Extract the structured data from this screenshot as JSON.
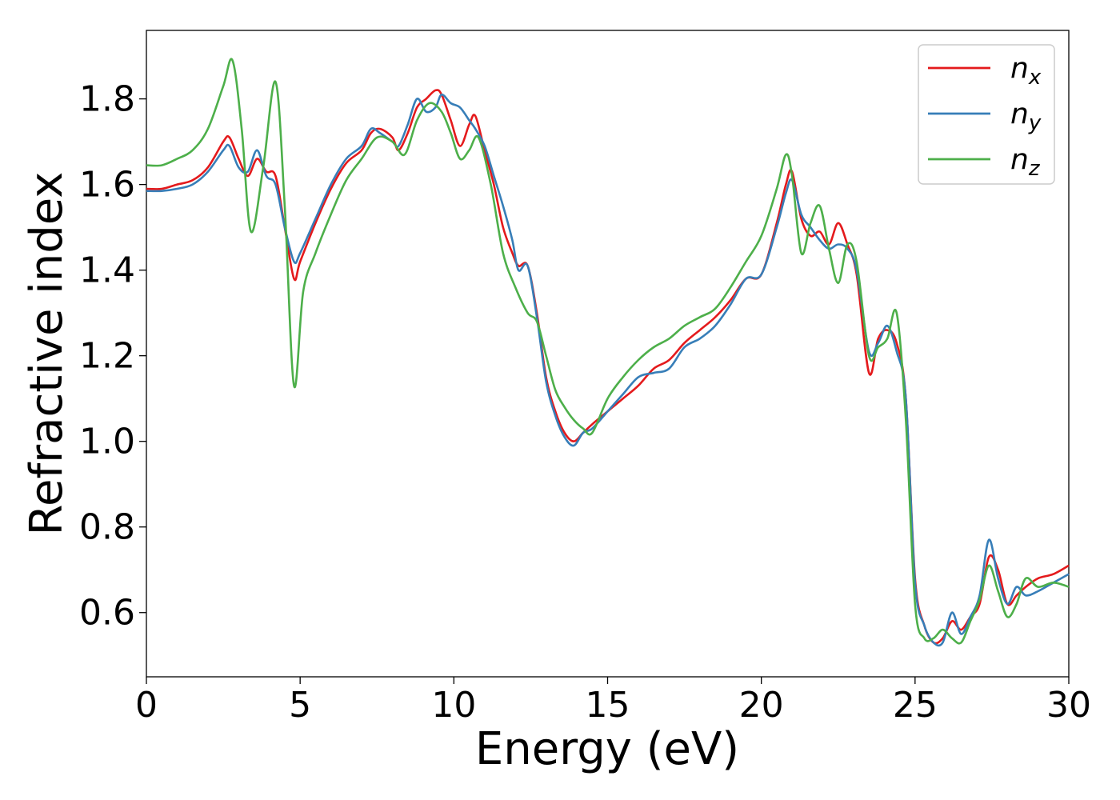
{
  "chart_data": {
    "type": "line",
    "title": "",
    "xlabel": "Energy (eV)",
    "ylabel": "Refractive index",
    "xlim": [
      0,
      30
    ],
    "ylim": [
      0.45,
      1.96
    ],
    "xticks": [
      0,
      5,
      10,
      15,
      20,
      25,
      30
    ],
    "yticks": [
      0.6,
      0.8,
      1.0,
      1.2,
      1.4,
      1.6,
      1.8
    ],
    "grid": false,
    "legend_position": "top-right",
    "series": [
      {
        "name": "n",
        "subscript": "x",
        "color": "#e41a1c",
        "x": [
          0,
          0.5,
          1,
          1.5,
          2,
          2.5,
          2.7,
          3,
          3.3,
          3.6,
          3.9,
          4.2,
          4.5,
          4.8,
          5,
          5.5,
          6,
          6.5,
          7,
          7.3,
          7.6,
          8,
          8.2,
          8.5,
          8.8,
          9.1,
          9.4,
          9.6,
          9.9,
          10.2,
          10.5,
          10.7,
          11,
          11.3,
          11.6,
          11.9,
          12.1,
          12.4,
          12.7,
          13,
          13.3,
          13.6,
          13.9,
          14.2,
          14.5,
          15,
          15.5,
          16,
          16.5,
          17,
          17.5,
          18,
          18.5,
          19,
          19.5,
          20,
          20.5,
          20.8,
          21,
          21.3,
          21.6,
          21.9,
          22.2,
          22.5,
          22.8,
          23.1,
          23.5,
          23.8,
          24.1,
          24.4,
          24.7,
          25,
          25.3,
          25.6,
          25.9,
          26.2,
          26.5,
          26.8,
          27.1,
          27.4,
          27.7,
          28,
          28.3,
          28.6,
          29,
          29.5,
          30
        ],
        "y": [
          1.59,
          1.59,
          1.6,
          1.61,
          1.64,
          1.7,
          1.71,
          1.66,
          1.62,
          1.66,
          1.63,
          1.62,
          1.5,
          1.38,
          1.42,
          1.51,
          1.59,
          1.65,
          1.68,
          1.72,
          1.73,
          1.71,
          1.68,
          1.72,
          1.78,
          1.8,
          1.82,
          1.81,
          1.75,
          1.69,
          1.74,
          1.76,
          1.68,
          1.6,
          1.5,
          1.44,
          1.41,
          1.41,
          1.3,
          1.15,
          1.07,
          1.02,
          1.0,
          1.02,
          1.04,
          1.07,
          1.1,
          1.13,
          1.17,
          1.19,
          1.23,
          1.26,
          1.29,
          1.33,
          1.38,
          1.39,
          1.51,
          1.6,
          1.63,
          1.52,
          1.48,
          1.49,
          1.46,
          1.51,
          1.46,
          1.39,
          1.16,
          1.24,
          1.26,
          1.23,
          1.1,
          0.68,
          0.57,
          0.53,
          0.54,
          0.58,
          0.56,
          0.59,
          0.62,
          0.73,
          0.7,
          0.62,
          0.64,
          0.66,
          0.68,
          0.69,
          0.71
        ]
      },
      {
        "name": "n",
        "subscript": "y",
        "color": "#377eb8",
        "x": [
          0,
          0.5,
          1,
          1.5,
          2,
          2.5,
          2.7,
          3,
          3.3,
          3.6,
          3.9,
          4.2,
          4.5,
          4.8,
          5,
          5.5,
          6,
          6.5,
          7,
          7.3,
          7.6,
          8,
          8.2,
          8.5,
          8.8,
          9.1,
          9.4,
          9.6,
          9.9,
          10.2,
          10.5,
          10.7,
          11,
          11.3,
          11.6,
          11.9,
          12.1,
          12.4,
          12.7,
          13,
          13.3,
          13.6,
          13.9,
          14.2,
          14.5,
          15,
          15.5,
          16,
          16.5,
          17,
          17.5,
          18,
          18.5,
          19,
          19.5,
          20,
          20.5,
          20.8,
          21,
          21.3,
          21.6,
          21.9,
          22.2,
          22.5,
          22.8,
          23.1,
          23.5,
          23.8,
          24.1,
          24.4,
          24.7,
          25,
          25.3,
          25.6,
          25.9,
          26.2,
          26.5,
          26.8,
          27.1,
          27.4,
          27.7,
          28,
          28.3,
          28.6,
          29,
          29.5,
          30
        ],
        "y": [
          1.585,
          1.585,
          1.59,
          1.6,
          1.63,
          1.68,
          1.69,
          1.64,
          1.63,
          1.68,
          1.62,
          1.6,
          1.5,
          1.42,
          1.44,
          1.52,
          1.6,
          1.66,
          1.69,
          1.73,
          1.72,
          1.7,
          1.69,
          1.74,
          1.8,
          1.77,
          1.78,
          1.81,
          1.79,
          1.78,
          1.75,
          1.73,
          1.69,
          1.62,
          1.55,
          1.47,
          1.4,
          1.41,
          1.29,
          1.14,
          1.06,
          1.01,
          0.99,
          1.02,
          1.03,
          1.07,
          1.11,
          1.15,
          1.16,
          1.17,
          1.22,
          1.24,
          1.27,
          1.32,
          1.38,
          1.39,
          1.5,
          1.58,
          1.61,
          1.53,
          1.5,
          1.47,
          1.45,
          1.46,
          1.45,
          1.4,
          1.21,
          1.23,
          1.27,
          1.21,
          1.1,
          0.67,
          0.57,
          0.53,
          0.53,
          0.6,
          0.55,
          0.59,
          0.64,
          0.77,
          0.68,
          0.62,
          0.66,
          0.64,
          0.65,
          0.67,
          0.69
        ]
      },
      {
        "name": "n",
        "subscript": "z",
        "color": "#4daf4a",
        "x": [
          0,
          0.5,
          1,
          1.5,
          2,
          2.5,
          2.8,
          3.1,
          3.4,
          3.8,
          4.2,
          4.5,
          4.8,
          5.1,
          5.5,
          6,
          6.5,
          7,
          7.5,
          8,
          8.4,
          8.8,
          9.2,
          9.6,
          9.9,
          10.2,
          10.5,
          10.8,
          11.2,
          11.6,
          12,
          12.4,
          12.7,
          13,
          13.3,
          13.6,
          13.9,
          14.2,
          14.5,
          15,
          15.5,
          16,
          16.5,
          17,
          17.5,
          18,
          18.5,
          19,
          19.5,
          20,
          20.5,
          20.8,
          21,
          21.3,
          21.6,
          21.9,
          22.2,
          22.5,
          22.8,
          23.1,
          23.5,
          23.8,
          24.1,
          24.4,
          24.7,
          25,
          25.3,
          25.6,
          25.9,
          26.2,
          26.5,
          26.8,
          27.1,
          27.4,
          27.7,
          28,
          28.3,
          28.6,
          29,
          29.5,
          30
        ],
        "y": [
          1.645,
          1.645,
          1.66,
          1.68,
          1.73,
          1.83,
          1.89,
          1.73,
          1.49,
          1.64,
          1.84,
          1.55,
          1.13,
          1.35,
          1.44,
          1.53,
          1.61,
          1.66,
          1.71,
          1.7,
          1.67,
          1.75,
          1.79,
          1.77,
          1.72,
          1.66,
          1.68,
          1.71,
          1.6,
          1.44,
          1.36,
          1.3,
          1.28,
          1.2,
          1.12,
          1.08,
          1.05,
          1.03,
          1.02,
          1.1,
          1.15,
          1.19,
          1.22,
          1.24,
          1.27,
          1.29,
          1.31,
          1.36,
          1.42,
          1.48,
          1.59,
          1.67,
          1.62,
          1.44,
          1.51,
          1.55,
          1.45,
          1.37,
          1.46,
          1.42,
          1.2,
          1.22,
          1.24,
          1.3,
          1.05,
          0.62,
          0.54,
          0.54,
          0.56,
          0.54,
          0.53,
          0.58,
          0.63,
          0.71,
          0.65,
          0.59,
          0.62,
          0.68,
          0.66,
          0.67,
          0.66
        ]
      }
    ]
  }
}
